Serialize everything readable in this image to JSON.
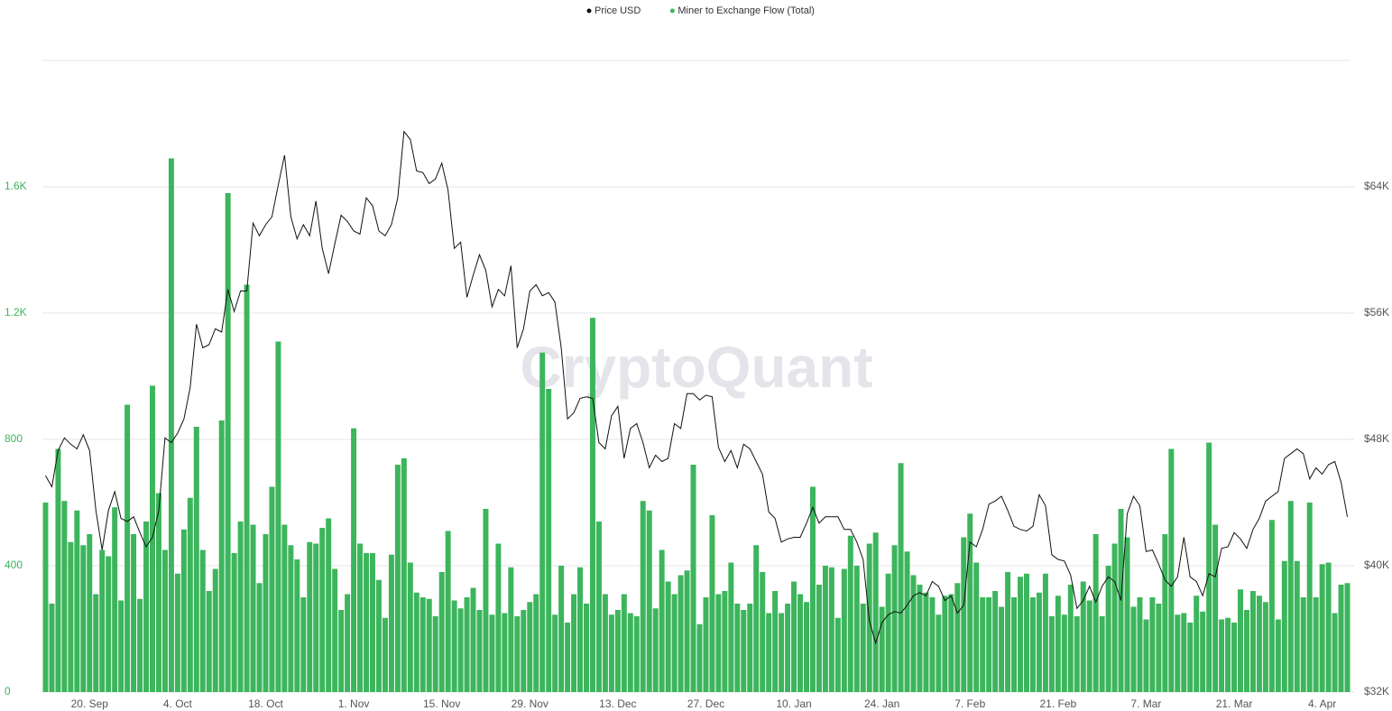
{
  "chart_data": {
    "type": "bar",
    "watermark": "CryptoQuant",
    "categories": [
      null,
      null,
      null,
      null,
      null,
      null,
      null,
      "20. Sep",
      null,
      null,
      null,
      null,
      null,
      null,
      null,
      null,
      null,
      null,
      null,
      null,
      null,
      "4. Oct",
      null,
      null,
      null,
      null,
      null,
      null,
      null,
      null,
      null,
      null,
      null,
      null,
      null,
      "18. Oct",
      null,
      null,
      null,
      null,
      null,
      null,
      null,
      null,
      null,
      null,
      null,
      null,
      null,
      "1. Nov",
      null,
      null,
      null,
      null,
      null,
      null,
      null,
      null,
      null,
      null,
      null,
      null,
      null,
      "15. Nov",
      null,
      null,
      null,
      null,
      null,
      null,
      null,
      null,
      null,
      null,
      null,
      null,
      null,
      "29. Nov",
      null,
      null,
      null,
      null,
      null,
      null,
      null,
      null,
      null,
      null,
      null,
      null,
      null,
      "13. Dec",
      null,
      null,
      null,
      null,
      null,
      null,
      null,
      null,
      null,
      null,
      null,
      null,
      null,
      "27. Dec",
      null,
      null,
      null,
      null,
      null,
      null,
      null,
      null,
      null,
      null,
      null,
      null,
      null,
      "10. Jan",
      null,
      null,
      null,
      null,
      null,
      null,
      null,
      null,
      null,
      null,
      null,
      null,
      null,
      "24. Jan",
      null,
      null,
      null,
      null,
      null,
      null,
      null,
      null,
      null,
      null,
      null,
      null,
      null,
      "7. Feb",
      null,
      null,
      null,
      null,
      null,
      null,
      null,
      null,
      null,
      null,
      null,
      null,
      null,
      "21. Feb",
      null,
      null,
      null,
      null,
      null,
      null,
      null,
      null,
      null,
      null,
      null,
      null,
      null,
      "7. Mar",
      null,
      null,
      null,
      null,
      null,
      null,
      null,
      null,
      null,
      null,
      null,
      null,
      null,
      "21. Mar",
      null,
      null,
      null,
      null,
      null,
      null,
      null,
      null,
      null,
      null,
      null,
      null,
      null,
      "4. Apr",
      null,
      null,
      null,
      null
    ],
    "series": [
      {
        "name": "Price USD",
        "type": "line",
        "axis": "y2",
        "color": "#111111",
        "values": [
          45700,
          45000,
          47300,
          48100,
          47700,
          47400,
          48300,
          47300,
          43500,
          41000,
          43500,
          44700,
          43000,
          42800,
          43100,
          42100,
          41200,
          41800,
          43500,
          48100,
          47800,
          48400,
          49300,
          51300,
          55300,
          53800,
          54000,
          55000,
          54800,
          57500,
          56100,
          57400,
          57400,
          61700,
          60900,
          61600,
          62100,
          64100,
          66000,
          62100,
          60700,
          61600,
          60900,
          63100,
          60100,
          58500,
          60400,
          62200,
          61800,
          61200,
          61000,
          63300,
          62800,
          61200,
          60900,
          61600,
          63300,
          67500,
          67000,
          65000,
          64900,
          64200,
          64500,
          65500,
          63800,
          60100,
          60500,
          57000,
          58400,
          59700,
          58700,
          56400,
          57500,
          57100,
          59000,
          53800,
          55000,
          57400,
          57800,
          57100,
          57300,
          56700,
          53800,
          49300,
          49700,
          50600,
          50700,
          50600,
          47800,
          47400,
          49500,
          50100,
          46800,
          48700,
          49000,
          47800,
          46200,
          47000,
          46600,
          46800,
          49000,
          48700,
          50900,
          50900,
          50500,
          50800,
          50700,
          47500,
          46600,
          47300,
          46200,
          47700,
          47400,
          46600,
          45800,
          43400,
          43000,
          41500,
          41700,
          41800,
          41800,
          42700,
          43700,
          42700,
          43100,
          43100,
          43100,
          42300,
          42300,
          41500,
          40400,
          36500,
          35100,
          36400,
          36900,
          37100,
          37000,
          37500,
          38100,
          38300,
          38100,
          39000,
          38700,
          37800,
          38100,
          37000,
          37500,
          41500,
          41200,
          42300,
          43900,
          44100,
          44400,
          43500,
          42500,
          42300,
          42200,
          42500,
          44500,
          43800,
          40700,
          40400,
          40300,
          39400,
          37300,
          37800,
          38700,
          37700,
          38700,
          39300,
          39000,
          37800,
          43300,
          44400,
          43800,
          40900,
          41000,
          40100,
          39100,
          38700,
          39300,
          41800,
          39300,
          39000,
          38100,
          39500,
          39300,
          41100,
          41200,
          42100,
          41700,
          41100,
          42300,
          43000,
          44100,
          44400,
          44700,
          46800,
          47100,
          47400,
          47100,
          45500,
          46200,
          45800,
          46400,
          46600,
          45300,
          43100
        ]
      },
      {
        "name": "Miner to Exchange Flow (Total)",
        "type": "bar",
        "axis": "y",
        "color": "#3cb55c",
        "values": [
          600,
          280,
          770,
          605,
          475,
          575,
          465,
          500,
          310,
          450,
          430,
          585,
          290,
          910,
          500,
          295,
          540,
          970,
          630,
          450,
          1690,
          375,
          515,
          615,
          840,
          450,
          320,
          390,
          860,
          1580,
          440,
          540,
          1290,
          530,
          345,
          500,
          650,
          1110,
          530,
          465,
          420,
          300,
          475,
          470,
          520,
          550,
          390,
          260,
          310,
          835,
          470,
          440,
          440,
          355,
          235,
          435,
          720,
          740,
          410,
          315,
          300,
          295,
          240,
          380,
          510,
          290,
          265,
          300,
          330,
          260,
          580,
          245,
          470,
          250,
          395,
          240,
          260,
          285,
          310,
          1075,
          960,
          245,
          400,
          220,
          310,
          395,
          280,
          1185,
          540,
          310,
          245,
          260,
          310,
          250,
          240,
          605,
          575,
          265,
          450,
          350,
          310,
          370,
          385,
          720,
          215,
          300,
          560,
          310,
          320,
          410,
          280,
          260,
          280,
          465,
          380,
          250,
          320,
          250,
          280,
          350,
          310,
          285,
          650,
          340,
          400,
          395,
          235,
          390,
          495,
          400,
          280,
          470,
          505,
          270,
          375,
          465,
          725,
          445,
          370,
          340,
          315,
          300,
          245,
          305,
          310,
          345,
          490,
          565,
          410,
          300,
          300,
          320,
          270,
          380,
          300,
          365,
          375,
          300,
          315,
          375,
          240,
          305,
          245,
          340,
          240,
          350,
          290,
          500,
          240,
          400,
          470,
          580,
          490,
          270,
          300,
          230,
          300,
          280,
          500,
          770,
          245,
          250,
          220,
          305,
          255,
          790,
          530,
          230,
          235,
          220,
          325,
          260,
          320,
          305,
          285,
          545,
          230,
          415,
          605,
          415,
          300,
          600,
          300,
          405,
          410,
          250,
          340,
          345
        ]
      }
    ],
    "ylim": [
      0,
      2000
    ],
    "yticks": [
      0,
      400,
      800,
      {
        "value": 1200,
        "label": "1.2K"
      },
      {
        "value": 1600,
        "label": "1.6K"
      }
    ],
    "y2lim": [
      32000,
      72000
    ],
    "y2ticks": [
      {
        "value": 32000,
        "label": "$32K"
      },
      {
        "value": 40000,
        "label": "$40K"
      },
      {
        "value": 48000,
        "label": "$48K"
      },
      {
        "value": 56000,
        "label": "$56K"
      },
      {
        "value": 64000,
        "label": "$64K"
      }
    ],
    "grid": true,
    "legend": "top"
  }
}
